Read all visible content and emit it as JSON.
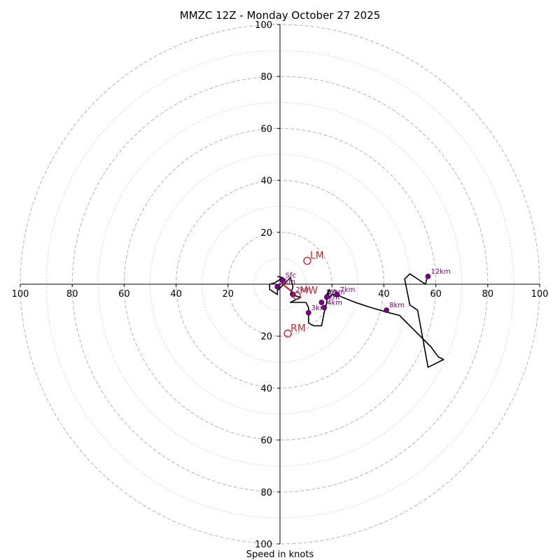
{
  "chart_data": {
    "type": "hodograph",
    "title": "MMZC 12Z - Monday October 27 2025",
    "xlabel": "Speed in knots",
    "units": "knots",
    "range": [
      -100,
      100
    ],
    "ring_major": [
      20,
      40,
      60,
      80,
      100
    ],
    "ring_minor": [
      10,
      30,
      50,
      70,
      90
    ],
    "x_tick_labels": [
      "100",
      "80",
      "60",
      "40",
      "20",
      "20",
      "40",
      "60",
      "80",
      "100"
    ],
    "y_tick_labels": [
      "100",
      "80",
      "60",
      "40",
      "20",
      "20",
      "40",
      "60",
      "80",
      "100"
    ],
    "trace": [
      [
        -1,
        3
      ],
      [
        1,
        2.5
      ],
      [
        -2,
        0.5
      ],
      [
        -4,
        0
      ],
      [
        -4,
        -2
      ],
      [
        -1,
        -4
      ],
      [
        -1,
        -2.5
      ],
      [
        4,
        2.5
      ],
      [
        5,
        -1
      ],
      [
        4,
        -4
      ],
      [
        8,
        -5
      ],
      [
        4,
        -7
      ],
      [
        10,
        -7
      ],
      [
        11,
        -9
      ],
      [
        11,
        -12
      ],
      [
        11,
        -15
      ],
      [
        13,
        -16
      ],
      [
        16,
        -16
      ],
      [
        17,
        -11
      ],
      [
        18,
        -7
      ],
      [
        18,
        -4
      ],
      [
        19,
        -2
      ],
      [
        18,
        -6
      ],
      [
        20,
        -4
      ],
      [
        22,
        -4
      ],
      [
        24,
        -5
      ],
      [
        29,
        -7
      ],
      [
        35,
        -9
      ],
      [
        42,
        -11
      ],
      [
        46,
        -12
      ],
      [
        52,
        -18
      ],
      [
        58,
        -24
      ],
      [
        61,
        -28
      ],
      [
        63,
        -29
      ],
      [
        57,
        -32
      ],
      [
        53,
        -10
      ],
      [
        50,
        -8
      ],
      [
        48,
        2
      ],
      [
        50,
        4
      ],
      [
        56,
        0
      ],
      [
        57,
        4
      ]
    ],
    "height_markers": [
      {
        "label": "Sfc",
        "u": 1,
        "v": 1.5
      },
      {
        "label": "1km",
        "u": -1,
        "v": -1
      },
      {
        "label": "2km",
        "u": 5,
        "v": -4
      },
      {
        "label": "3km",
        "u": 11,
        "v": -11
      },
      {
        "label": "4km",
        "u": 17,
        "v": -9
      },
      {
        "label": "5km",
        "u": 16,
        "v": -7
      },
      {
        "label": "6km",
        "u": 18,
        "v": -5
      },
      {
        "label": "7km",
        "u": 22,
        "v": -4
      },
      {
        "label": "8km",
        "u": 41,
        "v": -10
      },
      {
        "label": "12km",
        "u": 57,
        "v": 3
      }
    ],
    "shear_vector": {
      "from": [
        1,
        0
      ],
      "to": [
        6,
        -4
      ]
    },
    "motion_markers": [
      {
        "label": "LM",
        "u": 10.5,
        "v": 9
      },
      {
        "label": "MW",
        "u": 6.5,
        "v": -4.5
      },
      {
        "label": "RM",
        "u": 3,
        "v": -19
      }
    ]
  }
}
